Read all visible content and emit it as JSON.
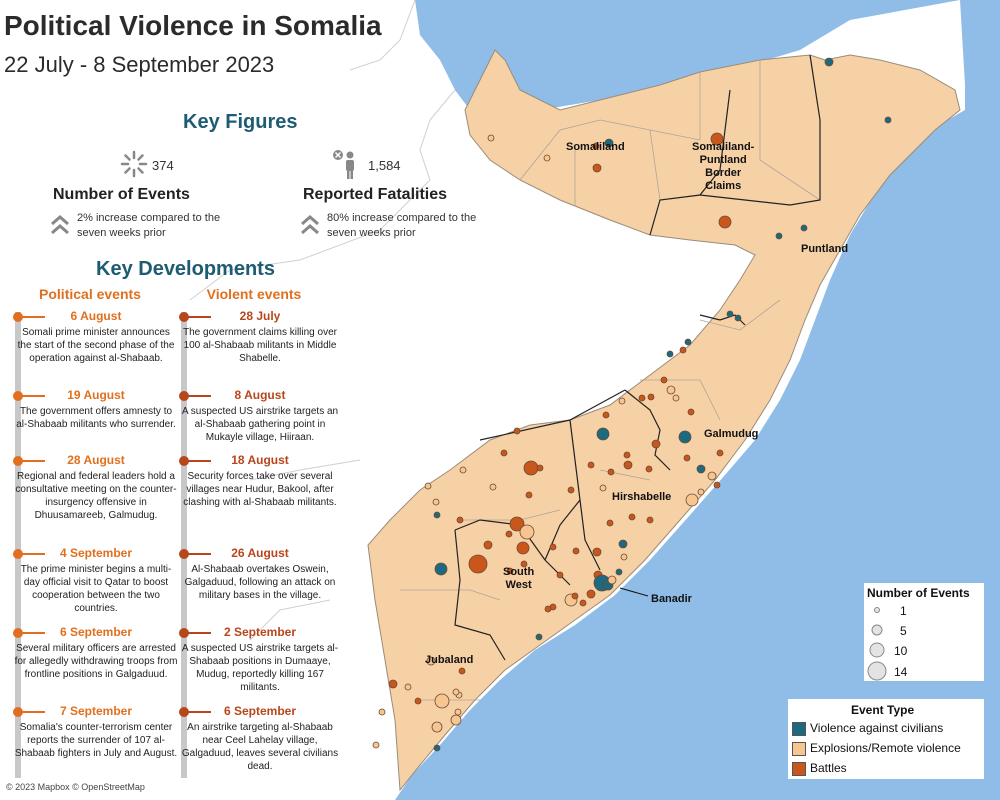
{
  "title": "Political Violence in Somalia",
  "subtitle": "22 July - 8 September 2023",
  "key_figures": {
    "heading": "Key Figures",
    "events": {
      "value": "374",
      "label": "Number of Events",
      "change": "2% increase compared to the seven weeks prior"
    },
    "fatalities": {
      "value": "1,584",
      "label": "Reported Fatalities",
      "change": "80% increase compared to the seven weeks prior"
    }
  },
  "key_developments": {
    "heading": "Key Developments",
    "political_heading": "Political events",
    "violent_heading": "Violent events",
    "political": [
      {
        "date": "6 August",
        "text": "Somali prime minister announces the start of the second phase of the operation against al-Shabaab."
      },
      {
        "date": "19 August",
        "text": "The government offers amnesty to al-Shabaab militants who surrender."
      },
      {
        "date": "28 August",
        "text": "Regional and federal leaders hold a consultative meeting on the counter-insurgency offensive in Dhuusamareeb, Galmudug."
      },
      {
        "date": "4 September",
        "text": "The prime minister begins a multi-day official visit to Qatar to boost cooperation between the two countries."
      },
      {
        "date": "6 September",
        "text": "Several military officers are arrested for allegedly withdrawing troops from frontline positions in Galgaduud."
      },
      {
        "date": "7 September",
        "text": "Somalia's counter-terrorism center reports the surrender of 107 al-Shabaab fighters in July and August."
      }
    ],
    "violent": [
      {
        "date": "28 July",
        "text": "The government claims killing over 100 al-Shabaab militants in Middle Shabelle."
      },
      {
        "date": "8 August",
        "text": "A suspected US airstrike targets an al-Shabaab gathering point in Mukayle village, Hiiraan."
      },
      {
        "date": "18 August",
        "text": "Security forces take over several villages near Hudur, Bakool, after clashing with al-Shabaab militants."
      },
      {
        "date": "26 August",
        "text": "Al-Shabaab overtakes Oswein, Galgaduud, following an attack on military bases in the village."
      },
      {
        "date": "2 September",
        "text": "A suspected US airstrike targets al-Shabaab positions in Dumaaye, Mudug, reportedly killing 167 militants."
      },
      {
        "date": "6 September",
        "text": "An airstrike targeting al-Shabaab near Ceel Lahelay village, Galgaduud, leaves several civilians dead."
      }
    ]
  },
  "regions": {
    "somaliland": "Somaliland",
    "border": "Somaliland-\nPuntland\nBorder\nClaims",
    "puntland": "Puntland",
    "galmudug": "Galmudug",
    "hirshabelle": "Hirshabelle",
    "south_west": "South\nWest",
    "banadir": "Banadir",
    "jubaland": "Jubaland"
  },
  "size_legend": {
    "title": "Number of Events",
    "items": [
      "1",
      "5",
      "10",
      "14"
    ]
  },
  "type_legend": {
    "title": "Event Type",
    "items": [
      {
        "label": "Violence against civilians",
        "color": "#1d6a80"
      },
      {
        "label": "Explosions/Remote violence",
        "color": "#f7c690"
      },
      {
        "label": "Battles",
        "color": "#c9561a"
      }
    ]
  },
  "colors": {
    "land": "#f6d1a6",
    "sea": "#8fbde8",
    "title": "#1d5c73",
    "orange": "#e0701f"
  },
  "attribution": "© 2023 Mapbox © OpenStreetMap",
  "icons": {
    "events": "burst-icon",
    "fatalities": "person-x-icon",
    "increase": "double-chevron-up-icon"
  }
}
